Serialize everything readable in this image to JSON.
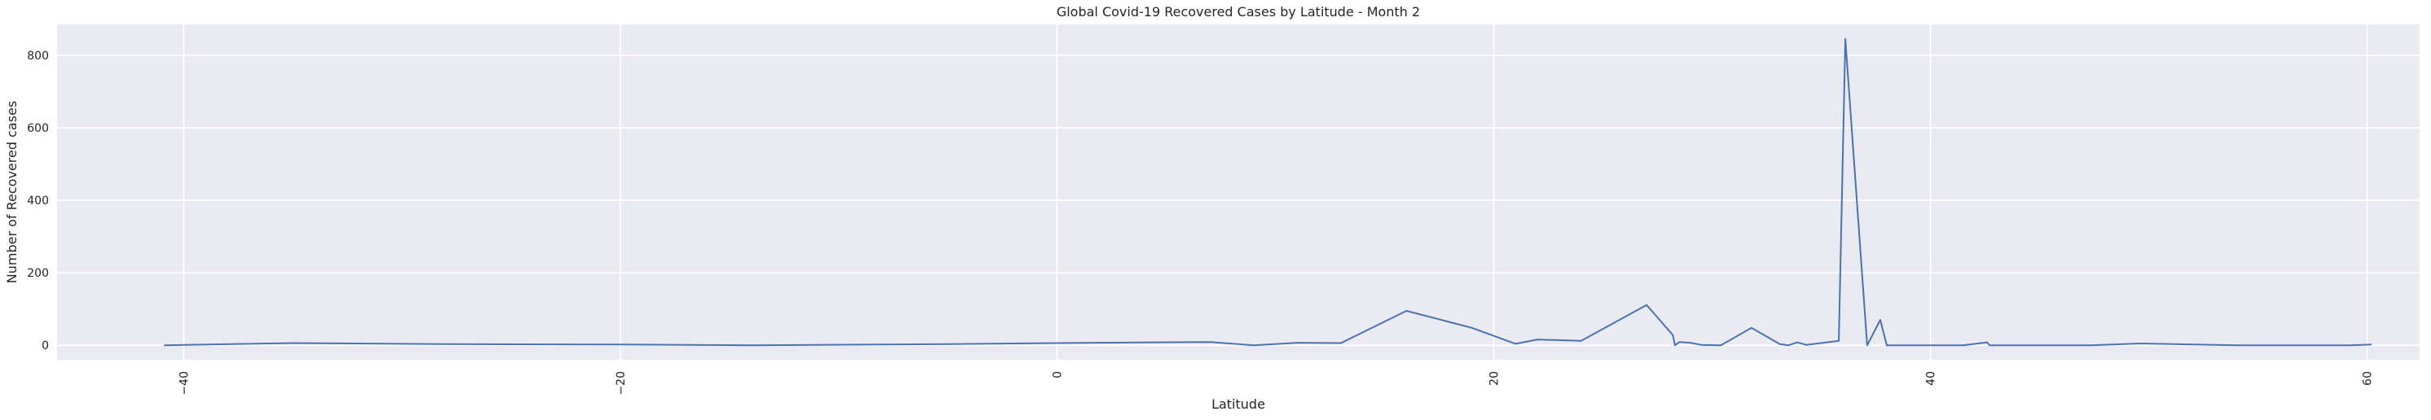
{
  "chart_data": {
    "type": "line",
    "title": "Global Covid-19 Recovered Cases by Latitude - Month 2",
    "xlabel": "Latitude",
    "ylabel": "Number of Recovered cases",
    "xlim": [
      -45.8,
      62.4
    ],
    "ylim": [
      -40,
      885
    ],
    "xticks": [
      -40,
      -20,
      0,
      20,
      40,
      60
    ],
    "yticks": [
      0,
      200,
      400,
      600,
      800
    ],
    "xtick_rotation": -90,
    "grid": true,
    "background": "#eaeaf2",
    "series": [
      {
        "color": "#4c72b0",
        "x": [
          -40.9,
          -35,
          -28,
          -20,
          -14,
          -5,
          0,
          7,
          9,
          11,
          13,
          16,
          19,
          21,
          22,
          24,
          27,
          28.2,
          28.3,
          28.5,
          29,
          29.5,
          30.4,
          31.8,
          33.1,
          33.5,
          33.9,
          34.3,
          35.8,
          36.1,
          37.1,
          37.7,
          38,
          39,
          40,
          41.5,
          42.6,
          42.7,
          44.1,
          47.3,
          49.6,
          54.1,
          57,
          59.2,
          60.2
        ],
        "y": [
          0,
          6,
          3,
          2,
          0,
          3,
          6,
          9,
          0,
          7,
          6,
          95,
          48,
          4,
          16,
          12,
          111,
          28,
          0,
          9,
          7,
          1,
          0,
          48,
          3,
          0,
          8,
          1,
          12,
          845,
          0,
          70,
          0,
          0,
          0,
          0,
          8,
          0,
          0,
          0,
          5,
          0,
          0,
          0,
          2
        ]
      }
    ]
  }
}
